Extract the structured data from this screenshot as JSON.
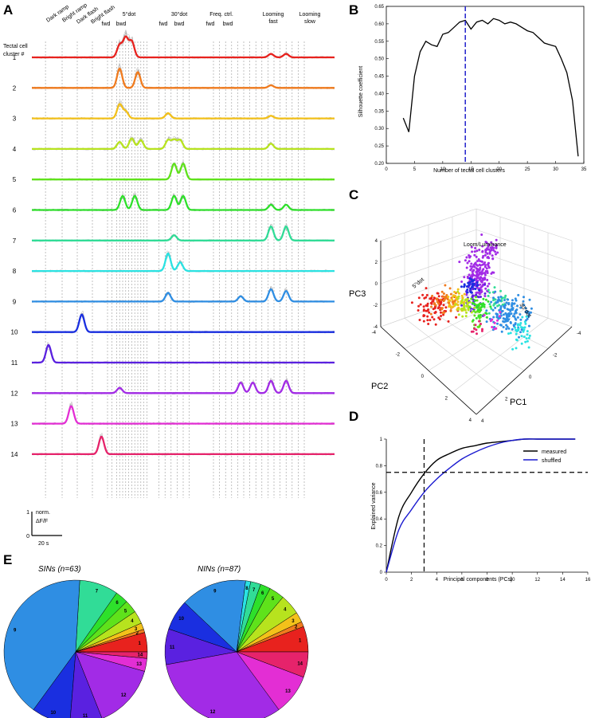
{
  "panel_labels": {
    "a": "A",
    "b": "B",
    "c": "C",
    "d": "D",
    "e": "E"
  },
  "chart_data": [
    {
      "panel": "A",
      "type": "line",
      "row_header": [
        "Tectal cell",
        "cluster #"
      ],
      "stimuli": [
        "Dark ramp",
        "Bright ramp",
        "Dark flash",
        "Bright flash",
        "5°dot",
        "fwd",
        "bwd",
        "30°dot",
        "fwd",
        "bwd",
        "Freq. ctrl.",
        "fwd",
        "bwd",
        "Looming fast",
        "Looming slow"
      ],
      "scale_bar": {
        "y_value": 1,
        "y_min": 0,
        "y_label": [
          "norm.",
          "ΔF/F"
        ],
        "x_label": "20 s"
      },
      "series": [
        {
          "name": "1",
          "color": "#e8221e",
          "peaks": [
            [
              0.29,
              0.7
            ],
            [
              0.31,
              1.1
            ],
            [
              0.33,
              0.9
            ],
            [
              0.79,
              0.2
            ],
            [
              0.84,
              0.2
            ]
          ]
        },
        {
          "name": "2",
          "color": "#f07b1e",
          "peaks": [
            [
              0.29,
              1.1
            ],
            [
              0.35,
              0.9
            ],
            [
              0.79,
              0.15
            ]
          ]
        },
        {
          "name": "3",
          "color": "#f3c11a",
          "peaks": [
            [
              0.29,
              0.8
            ],
            [
              0.31,
              0.4
            ],
            [
              0.45,
              0.3
            ],
            [
              0.79,
              0.15
            ]
          ]
        },
        {
          "name": "4",
          "color": "#b7e31e",
          "peaks": [
            [
              0.29,
              0.4
            ],
            [
              0.33,
              0.6
            ],
            [
              0.36,
              0.5
            ],
            [
              0.45,
              0.5
            ],
            [
              0.47,
              0.5
            ],
            [
              0.49,
              0.5
            ],
            [
              0.79,
              0.3
            ]
          ]
        },
        {
          "name": "5",
          "color": "#5fe21b",
          "peaks": [
            [
              0.47,
              0.9
            ],
            [
              0.5,
              0.9
            ]
          ]
        },
        {
          "name": "6",
          "color": "#2ee02b",
          "peaks": [
            [
              0.3,
              0.8
            ],
            [
              0.34,
              0.8
            ],
            [
              0.47,
              0.8
            ],
            [
              0.5,
              0.8
            ],
            [
              0.79,
              0.3
            ],
            [
              0.84,
              0.3
            ]
          ]
        },
        {
          "name": "7",
          "color": "#31dc97",
          "peaks": [
            [
              0.47,
              0.3
            ],
            [
              0.79,
              0.8
            ],
            [
              0.84,
              0.8
            ]
          ]
        },
        {
          "name": "8",
          "color": "#2ae2e2",
          "peaks": [
            [
              0.45,
              1.0
            ],
            [
              0.49,
              0.5
            ]
          ]
        },
        {
          "name": "9",
          "color": "#2f8ee3",
          "peaks": [
            [
              0.45,
              0.5
            ],
            [
              0.69,
              0.3
            ],
            [
              0.79,
              0.7
            ],
            [
              0.84,
              0.6
            ]
          ]
        },
        {
          "name": "10",
          "color": "#1a2fe0",
          "peaks": [
            [
              0.165,
              1.0
            ]
          ]
        },
        {
          "name": "11",
          "color": "#5a21e0",
          "peaks": [
            [
              0.055,
              1.0
            ]
          ]
        },
        {
          "name": "12",
          "color": "#a22be6",
          "peaks": [
            [
              0.29,
              0.3
            ],
            [
              0.69,
              0.6
            ],
            [
              0.73,
              0.6
            ],
            [
              0.79,
              0.7
            ],
            [
              0.84,
              0.7
            ]
          ]
        },
        {
          "name": "13",
          "color": "#e32ed4",
          "peaks": [
            [
              0.13,
              1.0
            ]
          ]
        },
        {
          "name": "14",
          "color": "#e6236b",
          "peaks": [
            [
              0.23,
              1.0
            ]
          ]
        }
      ]
    },
    {
      "panel": "B",
      "type": "line",
      "xlabel": "Number of tectal cell clusters",
      "ylabel": "Silhouette coefficient",
      "xlim": [
        0,
        35
      ],
      "ylim": [
        0.2,
        0.65
      ],
      "xticks": [
        0,
        5,
        10,
        15,
        20,
        25,
        30,
        35
      ],
      "yticks": [
        0.2,
        0.25,
        0.3,
        0.35,
        0.4,
        0.45,
        0.5,
        0.55,
        0.6,
        0.65
      ],
      "x": [
        3,
        4,
        5,
        6,
        7,
        8,
        9,
        10,
        11,
        12,
        13,
        14,
        15,
        16,
        17,
        18,
        19,
        20,
        21,
        22,
        23,
        24,
        25,
        26,
        27,
        28,
        29,
        30,
        31,
        32,
        33,
        34
      ],
      "values": [
        0.33,
        0.29,
        0.45,
        0.52,
        0.55,
        0.54,
        0.535,
        0.57,
        0.575,
        0.59,
        0.605,
        0.61,
        0.585,
        0.605,
        0.61,
        0.6,
        0.615,
        0.61,
        0.6,
        0.605,
        0.6,
        0.59,
        0.58,
        0.575,
        0.56,
        0.545,
        0.54,
        0.535,
        0.5,
        0.46,
        0.38,
        0.22
      ],
      "marker_x": 14
    },
    {
      "panel": "C",
      "type": "scatter",
      "axes": [
        "PC1",
        "PC2",
        "PC3"
      ],
      "pc1_ticks": [
        "-4",
        "-2",
        "0",
        "2",
        "4"
      ],
      "pc2_ticks": [
        "-4",
        "-2",
        "0",
        "2",
        "4"
      ],
      "pc3_ticks": [
        "4",
        "2",
        "0",
        "-2",
        "-4"
      ],
      "annotations": [
        "Loom/Luminance",
        "5°dot",
        "30°dot"
      ]
    },
    {
      "panel": "D",
      "type": "line",
      "xlabel": "Principal components (PCs)",
      "ylabel": "Explained variance",
      "xlim": [
        0,
        16
      ],
      "ylim": [
        0,
        1
      ],
      "xticks": [
        0,
        2,
        4,
        6,
        8,
        10,
        12,
        14,
        16
      ],
      "yticks": [
        0,
        0.2,
        0.4,
        0.6,
        0.8,
        1
      ],
      "series": [
        {
          "name": "measured",
          "color": "#000000",
          "x": [
            0,
            1,
            2,
            3,
            4,
            5,
            6,
            7,
            8,
            9,
            10,
            11,
            12,
            13,
            14,
            15
          ],
          "values": [
            0,
            0.42,
            0.6,
            0.74,
            0.84,
            0.89,
            0.93,
            0.95,
            0.97,
            0.98,
            0.99,
            1,
            1,
            1,
            1,
            1
          ]
        },
        {
          "name": "shuffled",
          "color": "#1a1ad0",
          "x": [
            0,
            1,
            2,
            3,
            4,
            5,
            6,
            7,
            8,
            9,
            10,
            11,
            12,
            13,
            14,
            15
          ],
          "values": [
            0,
            0.32,
            0.47,
            0.6,
            0.7,
            0.78,
            0.85,
            0.9,
            0.94,
            0.97,
            0.99,
            1,
            1,
            1,
            1,
            1
          ]
        }
      ],
      "hline": 0.75,
      "vline": 3
    },
    {
      "panel": "E",
      "type": "pie",
      "charts": [
        {
          "title": "SINs (n=63)",
          "slices": [
            {
              "label": "1",
              "value": 3,
              "color": "#e8221e"
            },
            {
              "label": "2",
              "value": 0.5,
              "color": "#f07b1e"
            },
            {
              "label": "3",
              "value": 1,
              "color": "#f3c11a"
            },
            {
              "label": "4",
              "value": 2,
              "color": "#b7e31e"
            },
            {
              "label": "5",
              "value": 2,
              "color": "#5fe21b"
            },
            {
              "label": "6",
              "value": 2,
              "color": "#2ee02b"
            },
            {
              "label": "7",
              "value": 6,
              "color": "#31dc97"
            },
            {
              "label": "8",
              "value": 0,
              "color": "#2ae2e2"
            },
            {
              "label": "9",
              "value": 28,
              "color": "#2f8ee3"
            },
            {
              "label": "10",
              "value": 6,
              "color": "#1a2fe0"
            },
            {
              "label": "11",
              "value": 5,
              "color": "#5a21e0"
            },
            {
              "label": "12",
              "value": 10,
              "color": "#a22be6"
            },
            {
              "label": "13",
              "value": 2,
              "color": "#e32ed4"
            },
            {
              "label": "14",
              "value": 1,
              "color": "#e6236b"
            }
          ]
        },
        {
          "title": "NINs (n=87)",
          "slices": [
            {
              "label": "1",
              "value": 5,
              "color": "#e8221e"
            },
            {
              "label": "2",
              "value": 1,
              "color": "#f07b1e"
            },
            {
              "label": "3",
              "value": 2,
              "color": "#f3c11a"
            },
            {
              "label": "4",
              "value": 4,
              "color": "#b7e31e"
            },
            {
              "label": "5",
              "value": 3,
              "color": "#5fe21b"
            },
            {
              "label": "6",
              "value": 2,
              "color": "#2ee02b"
            },
            {
              "label": "7",
              "value": 2,
              "color": "#31dc97"
            },
            {
              "label": "8",
              "value": 1,
              "color": "#2ae2e2"
            },
            {
              "label": "9",
              "value": 13,
              "color": "#2f8ee3"
            },
            {
              "label": "10",
              "value": 6,
              "color": "#1a2fe0"
            },
            {
              "label": "11",
              "value": 7,
              "color": "#5a21e0"
            },
            {
              "label": "12",
              "value": 28,
              "color": "#a22be6"
            },
            {
              "label": "13",
              "value": 8,
              "color": "#e32ed4"
            },
            {
              "label": "14",
              "value": 5,
              "color": "#e6236b"
            }
          ]
        }
      ]
    }
  ]
}
